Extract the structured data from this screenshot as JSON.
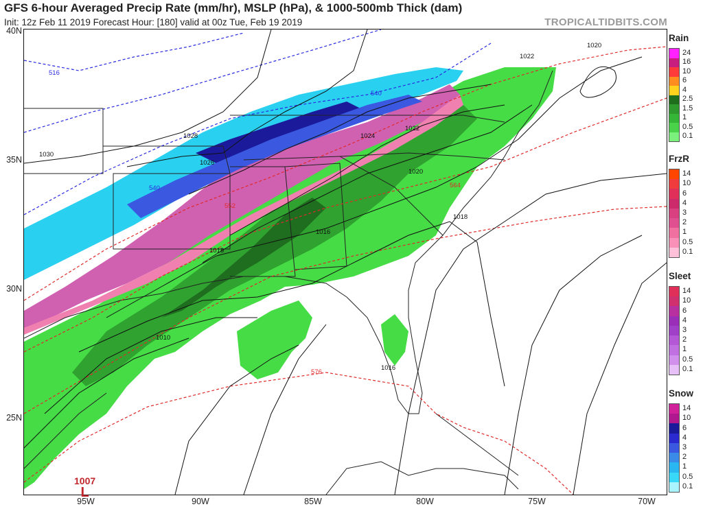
{
  "header": {
    "title": "GFS 6-hour Averaged Precip Rate (mm/hr), MSLP (hPa), & 1000-500mb Thick (dam)",
    "subtitle": "Init: 12z Feb 11 2019   Forecast Hour: [180]   valid at 00z Tue, Feb 19 2019",
    "brand": "TROPICALTIDBITS.COM"
  },
  "axes": {
    "lat_labels": [
      "40N",
      "35N",
      "30N",
      "25N"
    ],
    "lon_labels": [
      "95W",
      "90W",
      "85W",
      "80W",
      "75W",
      "70W"
    ]
  },
  "legend": {
    "rain": {
      "title": "Rain",
      "ticks": [
        "24",
        "16",
        "10",
        "6",
        "4",
        "2.5",
        "1.5",
        "1",
        "0.5",
        "0.1"
      ],
      "colors": [
        "#ff22ff",
        "#c81e80",
        "#ff3a3a",
        "#ff8c1e",
        "#ffd21e",
        "#1e6e1e",
        "#2e9a2e",
        "#36b636",
        "#4ad24a",
        "#7cf07c"
      ]
    },
    "frzr": {
      "title": "FrzR",
      "ticks": [
        "14",
        "10",
        "6",
        "4",
        "3",
        "2",
        "1",
        "0.5",
        "0.1"
      ],
      "colors": [
        "#ff4500",
        "#f03c3c",
        "#e0305a",
        "#cc2a6a",
        "#d84080",
        "#e05090",
        "#f070a0",
        "#f890b8",
        "#ffc0d8"
      ]
    },
    "sleet": {
      "title": "Sleet",
      "ticks": [
        "14",
        "10",
        "6",
        "4",
        "3",
        "2",
        "1",
        "0.5",
        "0.1"
      ],
      "colors": [
        "#e0305a",
        "#d0306e",
        "#b830a0",
        "#9a2eb8",
        "#a040c8",
        "#b458d8",
        "#c070e0",
        "#d090ec",
        "#e8c0f8"
      ]
    },
    "snow": {
      "title": "Snow",
      "ticks": [
        "14",
        "10",
        "6",
        "4",
        "3",
        "2",
        "1",
        "0.5",
        "0.1"
      ],
      "colors": [
        "#d0209a",
        "#b01890",
        "#1a1a9a",
        "#2a2ad0",
        "#3a58e0",
        "#3a8ae8",
        "#2ab6f0",
        "#3ad8f8",
        "#aaf4ff"
      ]
    }
  },
  "isobars": [
    {
      "label": "1020"
    },
    {
      "label": "1022"
    },
    {
      "label": "1022"
    },
    {
      "label": "1024"
    },
    {
      "label": "1026"
    },
    {
      "label": "1028"
    },
    {
      "label": "1030"
    },
    {
      "label": "1020"
    },
    {
      "label": "1018"
    },
    {
      "label": "1018"
    },
    {
      "label": "1016"
    },
    {
      "label": "1016"
    },
    {
      "label": "1010"
    }
  ],
  "thickness": [
    {
      "label": "516",
      "color": "#2a2ae0"
    },
    {
      "label": "540",
      "color": "#2a2ae0"
    },
    {
      "label": "540",
      "color": "#2a2ae0"
    },
    {
      "label": "552",
      "color": "#e02a2a"
    },
    {
      "label": "564",
      "color": "#e02a2a"
    },
    {
      "label": "576",
      "color": "#e02a2a"
    }
  ],
  "low_center": {
    "pressure": "1007",
    "symbol": "L"
  }
}
